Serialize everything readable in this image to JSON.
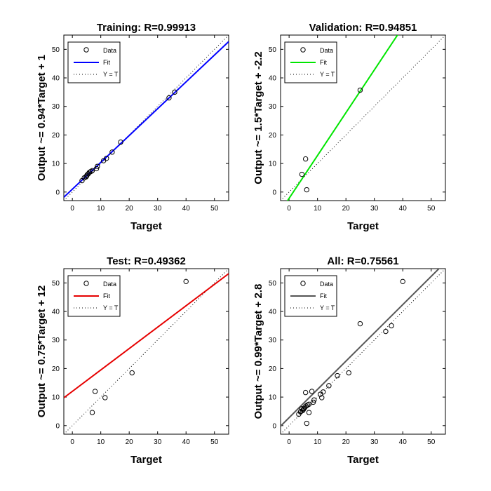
{
  "chart_data": [
    {
      "type": "scatter",
      "title": "Training: R=0.99913",
      "xlabel": "Target",
      "ylabel": "Output ~= 0.94*Target + 1",
      "xlim": [
        -3,
        55
      ],
      "ylim": [
        -3,
        55
      ],
      "xticks": [
        0,
        10,
        20,
        30,
        40,
        50
      ],
      "yticks": [
        0,
        10,
        20,
        30,
        40,
        50
      ],
      "fit": {
        "slope": 0.94,
        "intercept": 1,
        "color": "#0000ff"
      },
      "legend": [
        "Data",
        "Fit",
        "Y = T"
      ],
      "legend_position": "top-left",
      "points": [
        [
          3.4,
          4
        ],
        [
          4.2,
          5
        ],
        [
          4.8,
          5.3
        ],
        [
          5,
          5.6
        ],
        [
          5.2,
          6
        ],
        [
          5.6,
          6.4
        ],
        [
          6,
          6.9
        ],
        [
          6.5,
          7.2
        ],
        [
          7,
          7.5
        ],
        [
          8.5,
          8.2
        ],
        [
          8.8,
          9
        ],
        [
          11,
          11
        ],
        [
          12,
          11.8
        ],
        [
          14,
          14
        ],
        [
          17,
          17.5
        ],
        [
          34,
          33
        ],
        [
          36,
          35
        ]
      ]
    },
    {
      "type": "scatter",
      "title": "Validation: R=0.94851",
      "xlabel": "Target",
      "ylabel": "Output ~= 1.5*Target + -2.2",
      "xlim": [
        -3,
        55
      ],
      "ylim": [
        -3,
        55
      ],
      "xticks": [
        0,
        10,
        20,
        30,
        40,
        50
      ],
      "yticks": [
        0,
        10,
        20,
        30,
        40,
        50
      ],
      "fit": {
        "slope": 1.5,
        "intercept": -2.2,
        "color": "#00e600"
      },
      "legend": [
        "Data",
        "Fit",
        "Y = T"
      ],
      "legend_position": "top-left",
      "points": [
        [
          4.5,
          6.2
        ],
        [
          5.8,
          11.6
        ],
        [
          6.2,
          0.8
        ],
        [
          25,
          35.7
        ]
      ]
    },
    {
      "type": "scatter",
      "title": "Test: R=0.49362",
      "xlabel": "Target",
      "ylabel": "Output ~= 0.75*Target + 12",
      "xlim": [
        -3,
        55
      ],
      "ylim": [
        -3,
        55
      ],
      "xticks": [
        0,
        10,
        20,
        30,
        40,
        50
      ],
      "yticks": [
        0,
        10,
        20,
        30,
        40,
        50
      ],
      "fit": {
        "slope": 0.75,
        "intercept": 12,
        "color": "#e60000"
      },
      "legend": [
        "Data",
        "Fit",
        "Y = T"
      ],
      "legend_position": "top-left",
      "points": [
        [
          7,
          4.6
        ],
        [
          8,
          12
        ],
        [
          11.5,
          9.8
        ],
        [
          21,
          18.5
        ],
        [
          40,
          50.5
        ]
      ]
    },
    {
      "type": "scatter",
      "title": "All: R=0.75561",
      "xlabel": "Target",
      "ylabel": "Output ~= 0.99*Target + 2.8",
      "xlim": [
        -3,
        55
      ],
      "ylim": [
        -3,
        55
      ],
      "xticks": [
        0,
        10,
        20,
        30,
        40,
        50
      ],
      "yticks": [
        0,
        10,
        20,
        30,
        40,
        50
      ],
      "fit": {
        "slope": 0.99,
        "intercept": 2.8,
        "color": "#555555"
      },
      "legend": [
        "Data",
        "Fit",
        "Y = T"
      ],
      "legend_position": "top-left",
      "points": [
        [
          3.4,
          4
        ],
        [
          4,
          4.8
        ],
        [
          4.2,
          5
        ],
        [
          4.5,
          5.9
        ],
        [
          4.8,
          5.3
        ],
        [
          5,
          5.6
        ],
        [
          5.2,
          6
        ],
        [
          5.6,
          6.4
        ],
        [
          6,
          6.9
        ],
        [
          6.5,
          7.2
        ],
        [
          7,
          7.5
        ],
        [
          7,
          4.6
        ],
        [
          8,
          12
        ],
        [
          8.5,
          8.2
        ],
        [
          8.8,
          9
        ],
        [
          11,
          11
        ],
        [
          11.5,
          9.8
        ],
        [
          12,
          11.8
        ],
        [
          14,
          14
        ],
        [
          17,
          17.5
        ],
        [
          21,
          18.5
        ],
        [
          25,
          35.7
        ],
        [
          34,
          33
        ],
        [
          36,
          35
        ],
        [
          40,
          50.5
        ],
        [
          5.8,
          11.6
        ],
        [
          6.2,
          0.8
        ]
      ]
    }
  ]
}
